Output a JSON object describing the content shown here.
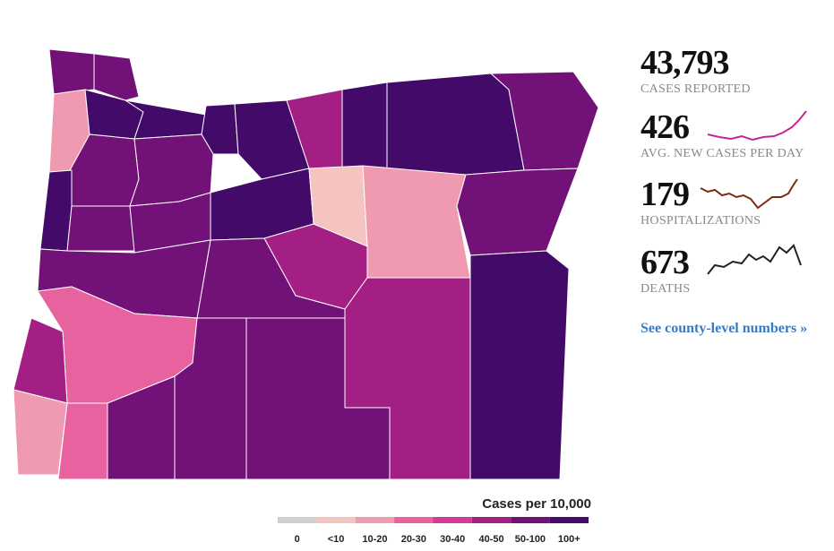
{
  "stats": [
    {
      "value": "43,793",
      "label": "CASES REPORTED"
    },
    {
      "value": "426",
      "label": "AVG. NEW CASES PER DAY"
    },
    {
      "value": "179",
      "label": "HOSPITALIZATIONS"
    },
    {
      "value": "673",
      "label": "DEATHS"
    }
  ],
  "link": "See county-level numbers »",
  "legend": {
    "title": "Cases per 10,000",
    "items": [
      {
        "label": "0",
        "color": "#cfcfcf"
      },
      {
        "label": "<10",
        "color": "#f6c4c0"
      },
      {
        "label": "10-20",
        "color": "#f09ab2"
      },
      {
        "label": "20-30",
        "color": "#e7629f"
      },
      {
        "label": "30-40",
        "color": "#d43b98"
      },
      {
        "label": "40-50",
        "color": "#a41f84"
      },
      {
        "label": "50-100",
        "color": "#721279"
      },
      {
        "label": "100+",
        "color": "#430a69"
      }
    ]
  }
}
